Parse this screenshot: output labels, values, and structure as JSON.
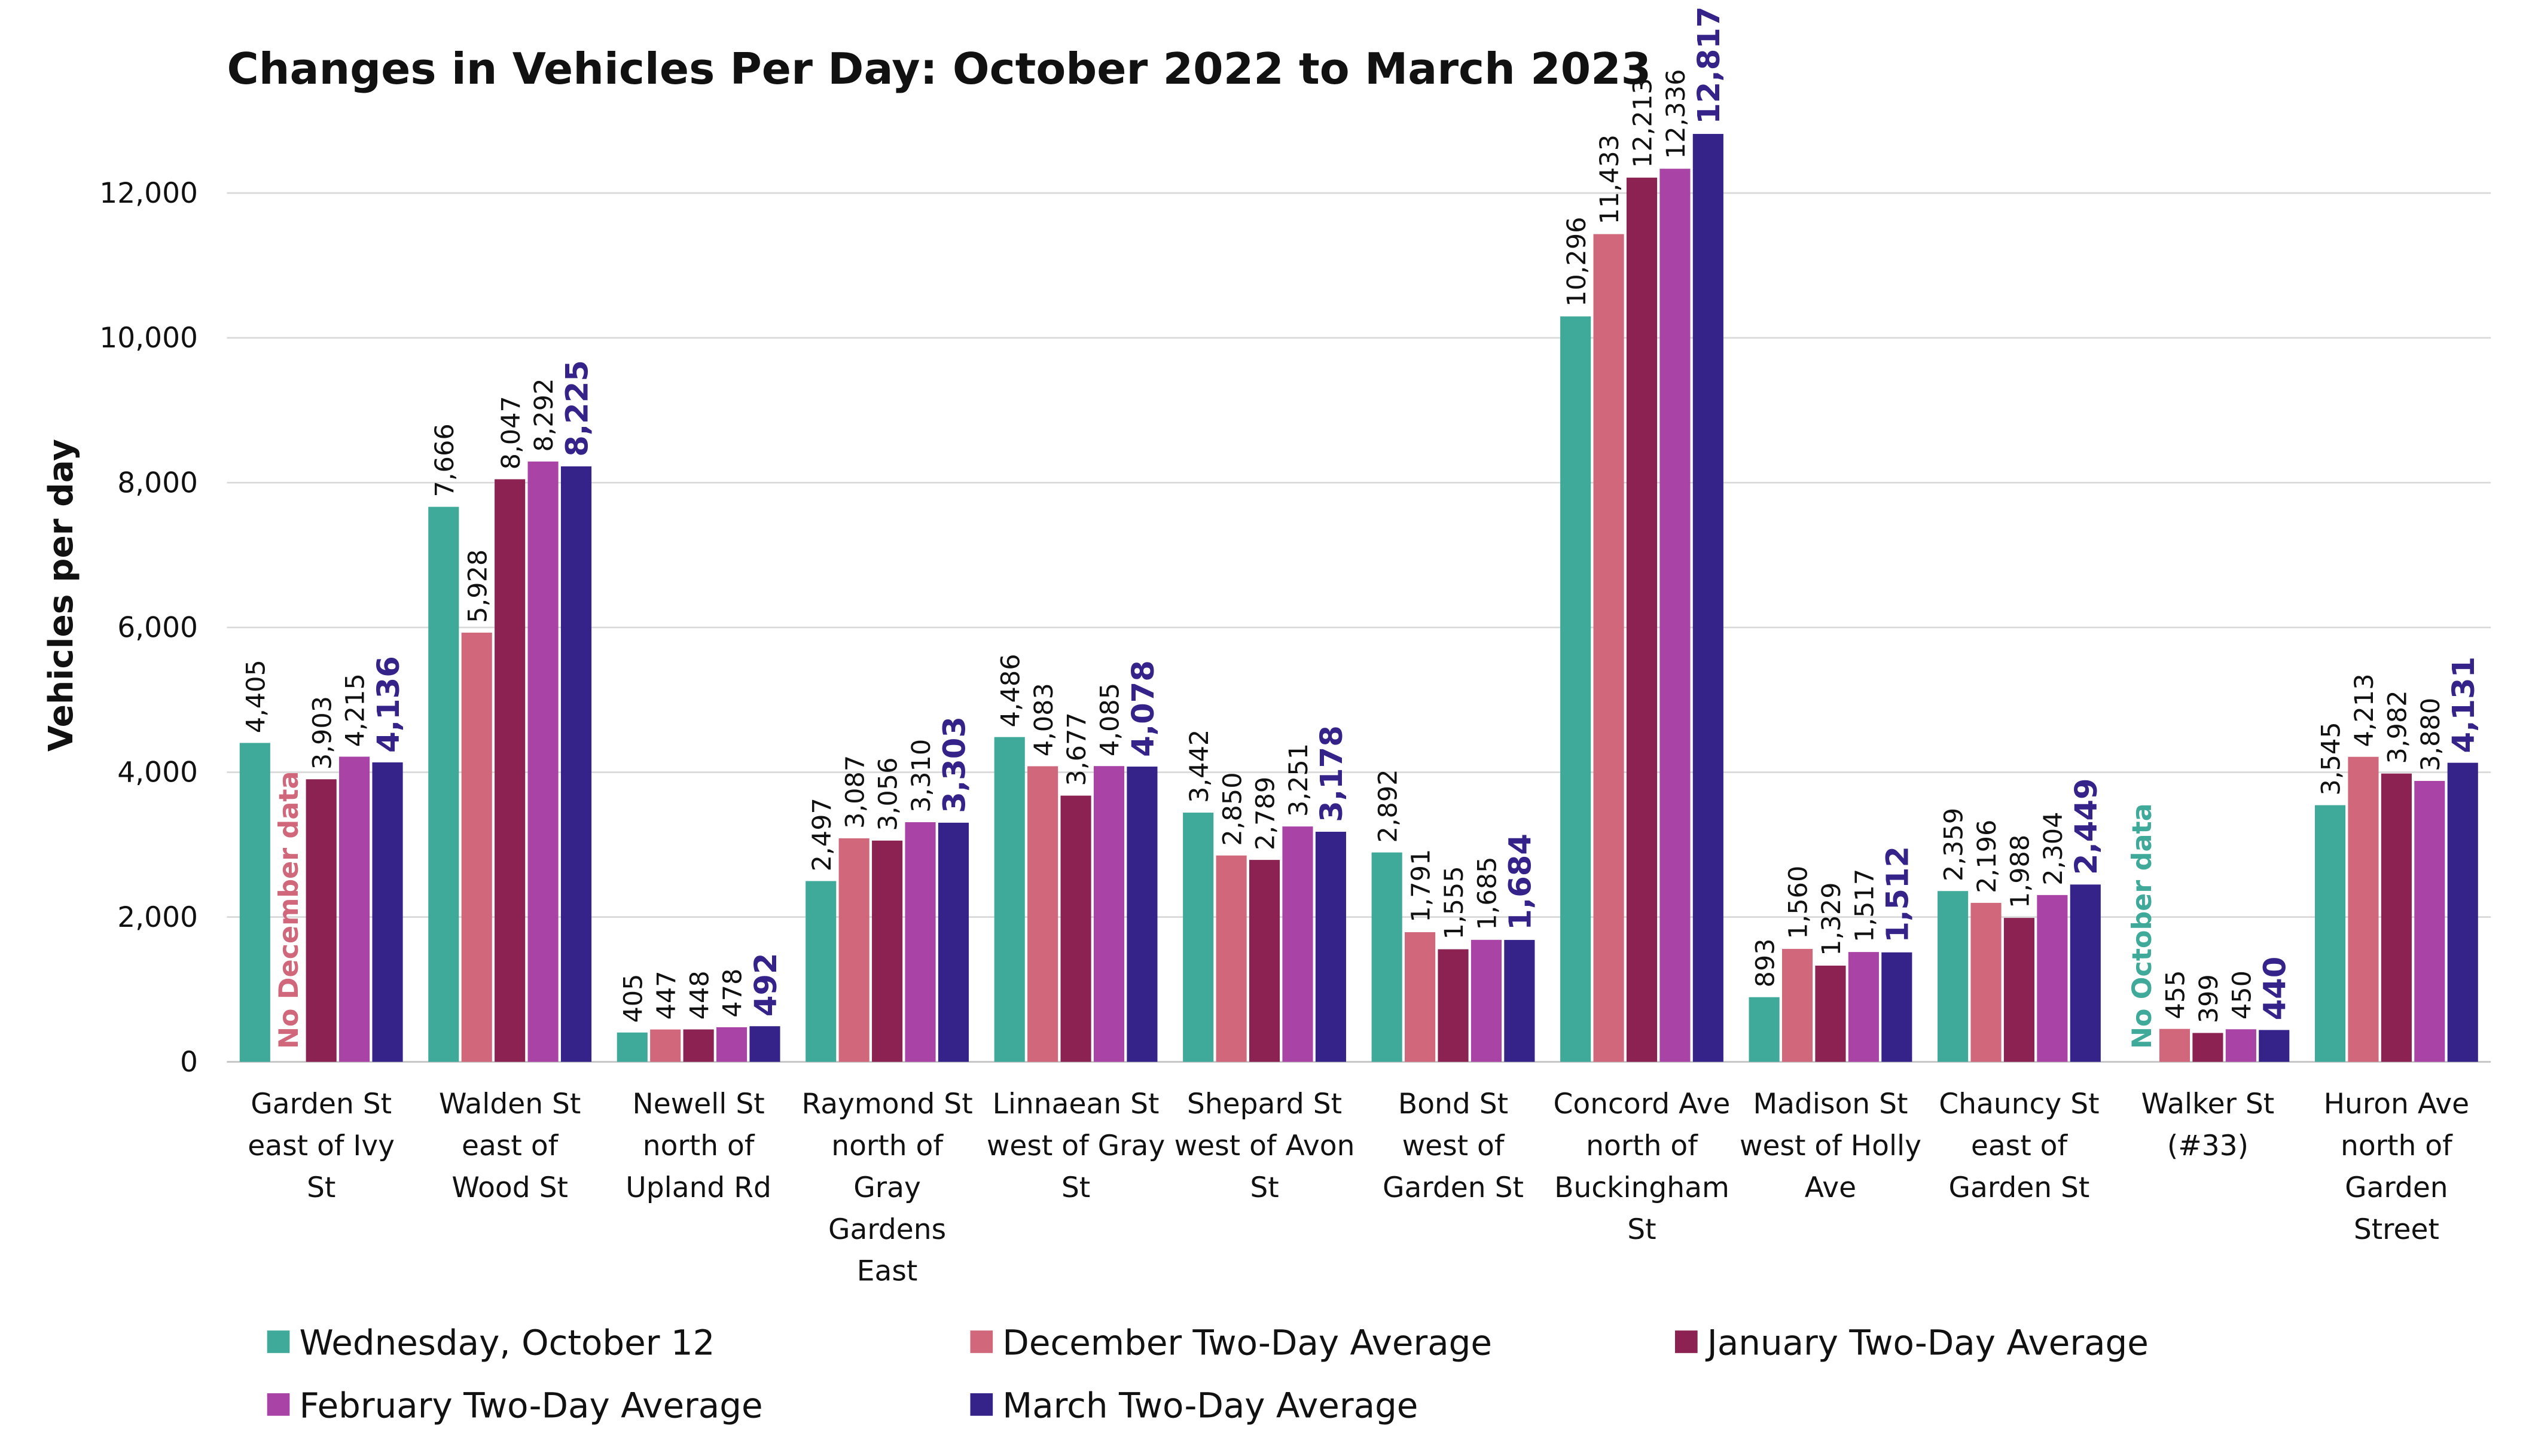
{
  "chart_data": {
    "type": "bar",
    "title": "Changes in Vehicles Per Day: October 2022 to March 2023",
    "y_label": "Vehicles per day",
    "categories": [
      "Garden St east of Ivy St",
      "Walden St east of Wood St",
      "Newell St north of Upland Rd",
      "Raymond St north of Gray Gardens East",
      "Linnaean St west of Gray St",
      "Shepard St west of Avon St",
      "Bond St west of Garden St",
      "Concord Ave north of Buckingham St",
      "Madison St west of Holly Ave",
      "Chauncy St east of Garden St",
      "Walker St (#33)",
      "Huron Ave north of Garden Street"
    ],
    "series": [
      {
        "name": "Wednesday, October 12",
        "color": "#3fa99a",
        "null_note": "No October data",
        "values": [
          4405,
          7666,
          405,
          2497,
          4486,
          3442,
          2892,
          10296,
          893,
          2359,
          null,
          3545
        ],
        "value_labels": [
          "4,405",
          "7,666",
          "405",
          "2,497",
          "4,486",
          "3,442",
          "2,892",
          "10,296",
          "893",
          "2,359",
          null,
          "3,545"
        ]
      },
      {
        "name": "December Two-Day Average",
        "color": "#d0677a",
        "null_note": "No December data",
        "values": [
          null,
          5928,
          447,
          3087,
          4083,
          2850,
          1791,
          11433,
          1560,
          2196,
          455,
          4213
        ],
        "value_labels": [
          null,
          "5,928",
          "447",
          "3,087",
          "4,083",
          "2,850",
          "1,791",
          "11,433",
          "1,560",
          "2,196",
          "455",
          "4,213"
        ]
      },
      {
        "name": "January Two-Day Average",
        "color": "#8b2252",
        "values": [
          3903,
          8047,
          448,
          3056,
          3677,
          2789,
          1555,
          12213,
          1329,
          1988,
          399,
          3982
        ],
        "value_labels": [
          "3,903",
          "8,047",
          "448",
          "3,056",
          "3,677",
          "2,789",
          "1,555",
          "12,213",
          "1,329",
          "1,988",
          "399",
          "3,982"
        ]
      },
      {
        "name": "February Two-Day Average",
        "color": "#a944a6",
        "values": [
          4215,
          8292,
          478,
          3310,
          4085,
          3251,
          1685,
          12336,
          1517,
          2304,
          450,
          3880
        ],
        "value_labels": [
          "4,215",
          "8,292",
          "478",
          "3,310",
          "4,085",
          "3,251",
          "1,685",
          "12,336",
          "1,517",
          "2,304",
          "450",
          "3,880"
        ]
      },
      {
        "name": "March Two-Day Average",
        "color": "#35238a",
        "emphasis": true,
        "values": [
          4136,
          8225,
          492,
          3303,
          4078,
          3178,
          1684,
          12817,
          1512,
          2449,
          440,
          4131
        ],
        "value_labels": [
          "4,136",
          "8,225",
          "492",
          "3,303",
          "4,078",
          "3,178",
          "1,684",
          "12,817",
          "1,512",
          "2,449",
          "440",
          "4,131"
        ]
      }
    ],
    "ylim": [
      0,
      14000
    ],
    "yticks": [
      0,
      {
        "value": 2000,
        "label": "2,000"
      },
      {
        "value": 4000,
        "label": "4,000"
      },
      {
        "value": 6000,
        "label": "6,000"
      },
      {
        "value": 8000,
        "label": "8,000"
      },
      {
        "value": 10000,
        "label": "10,000"
      },
      {
        "value": 12000,
        "label": "12,000"
      }
    ],
    "grid": true
  }
}
